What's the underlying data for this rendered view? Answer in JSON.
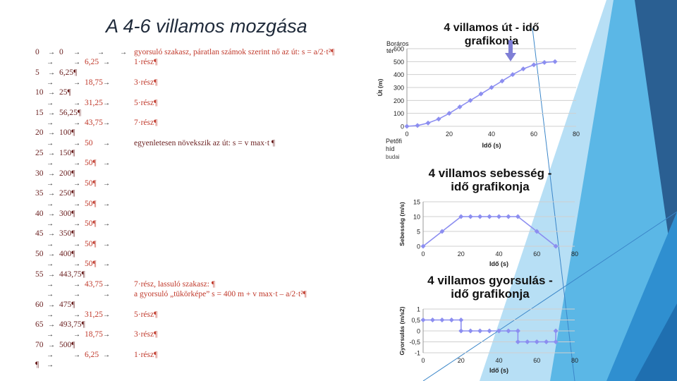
{
  "slide_title": "A 4-6 villamos mozgása",
  "table": {
    "rows": [
      {
        "t": "0",
        "s": "0",
        "v": "",
        "note": "gyorsuló szakasz, páratlan számok szerint nő az út: s = a/2·t²¶",
        "note_color": "red"
      },
      {
        "t": "",
        "s": "",
        "v": "6,25",
        "note": "1·rész¶",
        "note_color": "red"
      },
      {
        "t": "5",
        "s": "6,25¶",
        "v": "",
        "note": "",
        "note_color": ""
      },
      {
        "t": "",
        "s": "",
        "v": "18,75",
        "note": "3·rész¶",
        "note_color": "red"
      },
      {
        "t": "10",
        "s": "25¶",
        "v": "",
        "note": "",
        "note_color": ""
      },
      {
        "t": "",
        "s": "",
        "v": "31,25",
        "note": "5·rész¶",
        "note_color": "red"
      },
      {
        "t": "15",
        "s": "56,25¶",
        "v": "",
        "note": "",
        "note_color": ""
      },
      {
        "t": "",
        "s": "",
        "v": "43,75",
        "note": "7·rész¶",
        "note_color": "red"
      },
      {
        "t": "20",
        "s": "100¶",
        "v": "",
        "note": "",
        "note_color": ""
      },
      {
        "t": "",
        "s": "",
        "v": "50",
        "note": "egyenletesen növekszik az út: s = v max·t ¶",
        "note_color": "black"
      },
      {
        "t": "25",
        "s": "150¶",
        "v": "",
        "note": "",
        "note_color": ""
      },
      {
        "t": "",
        "s": "",
        "v": "50¶",
        "note": "",
        "note_color": ""
      },
      {
        "t": "30",
        "s": "200¶",
        "v": "",
        "note": "",
        "note_color": ""
      },
      {
        "t": "",
        "s": "",
        "v": "50¶",
        "note": "",
        "note_color": ""
      },
      {
        "t": "35",
        "s": "250¶",
        "v": "",
        "note": "",
        "note_color": ""
      },
      {
        "t": "",
        "s": "",
        "v": "50¶",
        "note": "",
        "note_color": ""
      },
      {
        "t": "40",
        "s": "300¶",
        "v": "",
        "note": "",
        "note_color": ""
      },
      {
        "t": "",
        "s": "",
        "v": "50¶",
        "note": "",
        "note_color": ""
      },
      {
        "t": "45",
        "s": "350¶",
        "v": "",
        "note": "",
        "note_color": ""
      },
      {
        "t": "",
        "s": "",
        "v": "50¶",
        "note": "",
        "note_color": ""
      },
      {
        "t": "50",
        "s": "400¶",
        "v": "",
        "note": "",
        "note_color": ""
      },
      {
        "t": "",
        "s": "",
        "v": "50¶",
        "note": "",
        "note_color": ""
      },
      {
        "t": "55",
        "s": "443,75¶",
        "v": "",
        "note": "",
        "note_color": ""
      },
      {
        "t": "",
        "s": "",
        "v": "43,75",
        "note": "7·rész, lassuló szakasz: ¶",
        "note_color": "red"
      },
      {
        "t": "",
        "s": "",
        "v": "",
        "note": "a gyorsuló „tükörképe” s = 400 m + v max·t – a/2·t²¶",
        "note_color": "red"
      },
      {
        "t": "60",
        "s": "475¶",
        "v": "",
        "note": "",
        "note_color": ""
      },
      {
        "t": "",
        "s": "",
        "v": "31,25",
        "note": "5·rész¶",
        "note_color": "red"
      },
      {
        "t": "65",
        "s": "493,75¶",
        "v": "",
        "note": "",
        "note_color": ""
      },
      {
        "t": "",
        "s": "",
        "v": "18,75",
        "note": "3·rész¶",
        "note_color": "red"
      },
      {
        "t": "70",
        "s": "500¶",
        "v": "",
        "note": "",
        "note_color": ""
      },
      {
        "t": "",
        "s": "",
        "v": "6,25",
        "note": "1·rész¶",
        "note_color": "red"
      },
      {
        "t": "¶",
        "s": "",
        "v": "",
        "note": "",
        "note_color": ""
      }
    ]
  },
  "chart_data": [
    {
      "type": "line",
      "title_line1": "4 villamos út - idő",
      "title_line2": "grafikonja",
      "xlabel": "Idő (s)",
      "ylabel": "Út (m)",
      "xlim": [
        0,
        80
      ],
      "ylim": [
        0,
        600
      ],
      "xticks": [
        0,
        20,
        40,
        60,
        80
      ],
      "yticks": [
        0,
        100,
        200,
        300,
        400,
        500,
        600
      ],
      "annotations": {
        "top_label_1": "Boráros",
        "top_label_2": "tér",
        "bottom_label_1": "Petőfi",
        "bottom_label_2": "híd",
        "bottom_label_3": "budai"
      },
      "series": [
        {
          "values": [
            [
              0,
              0
            ],
            [
              5,
              6.25
            ],
            [
              10,
              25
            ],
            [
              15,
              56.25
            ],
            [
              20,
              100
            ],
            [
              25,
              150
            ],
            [
              30,
              200
            ],
            [
              35,
              250
            ],
            [
              40,
              300
            ],
            [
              45,
              350
            ],
            [
              50,
              400
            ],
            [
              55,
              443.75
            ],
            [
              60,
              475
            ],
            [
              65,
              493.75
            ],
            [
              70,
              500
            ]
          ]
        }
      ],
      "grid": true
    },
    {
      "type": "line",
      "title_line1": "4 villamos sebesség -",
      "title_line2": "idő grafikonja",
      "xlabel": "Idő (s)",
      "ylabel": "Sebesség (m/s)",
      "xlim": [
        0,
        80
      ],
      "ylim": [
        0,
        15
      ],
      "xticks": [
        0,
        20,
        40,
        60,
        80
      ],
      "yticks": [
        0,
        5,
        10,
        15
      ],
      "series": [
        {
          "values": [
            [
              0,
              0
            ],
            [
              10,
              5
            ],
            [
              20,
              10
            ],
            [
              25,
              10
            ],
            [
              30,
              10
            ],
            [
              35,
              10
            ],
            [
              40,
              10
            ],
            [
              45,
              10
            ],
            [
              50,
              10
            ],
            [
              60,
              5
            ],
            [
              70,
              0
            ]
          ]
        }
      ],
      "grid": true
    },
    {
      "type": "line",
      "title_line1": "4 villamos gyorsulás -",
      "title_line2": "idő grafikonja",
      "xlabel": "Idő (s)",
      "ylabel": "Gyorsulás (m/s2)",
      "xlim": [
        0,
        80
      ],
      "ylim": [
        -1,
        1
      ],
      "xticks": [
        0,
        20,
        40,
        60,
        80
      ],
      "yticks": [
        -1,
        -0.5,
        0,
        0.5,
        1
      ],
      "ytick_labels": [
        "-1",
        "-0,5",
        "0",
        "0,5",
        "1"
      ],
      "series": [
        {
          "values": [
            [
              0,
              0.5
            ],
            [
              5,
              0.5
            ],
            [
              10,
              0.5
            ],
            [
              15,
              0.5
            ],
            [
              20,
              0.5
            ],
            [
              20,
              0
            ],
            [
              25,
              0
            ],
            [
              30,
              0
            ],
            [
              35,
              0
            ],
            [
              40,
              0
            ],
            [
              45,
              0
            ],
            [
              50,
              0
            ],
            [
              50,
              -0.5
            ],
            [
              55,
              -0.5
            ],
            [
              60,
              -0.5
            ],
            [
              65,
              -0.5
            ],
            [
              70,
              -0.5
            ],
            [
              70,
              0
            ]
          ]
        }
      ],
      "grid": true
    }
  ],
  "colors": {
    "accent": "#8c8ef0",
    "arrow": "#7f7fd6",
    "blue_dark": "#2a5f92",
    "blue_mid": "#3b86c9",
    "blue_light": "#9fd4f2"
  }
}
